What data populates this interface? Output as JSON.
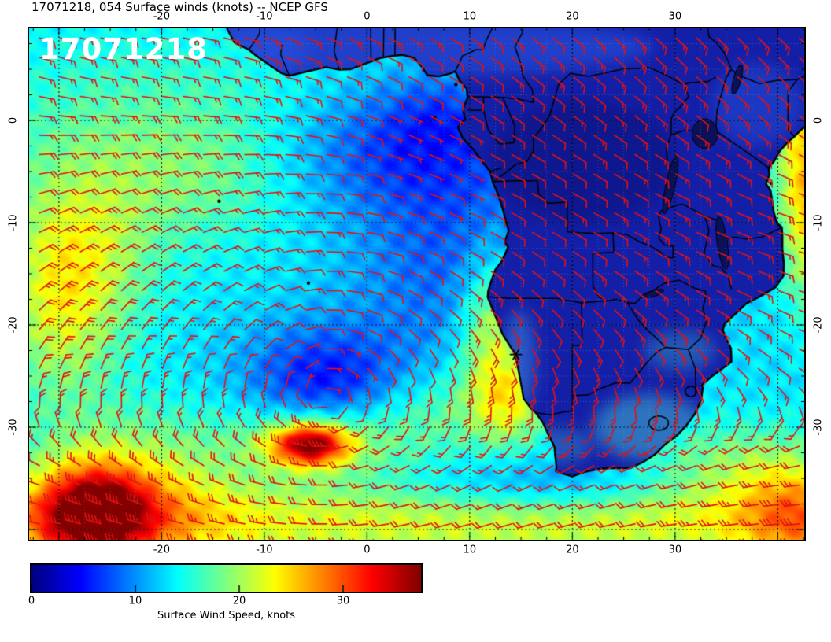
{
  "title": "17071218, 054 Surface winds (knots) -- NCEP GFS",
  "map_overlay_label": "17071218",
  "axes": {
    "top_ticks": [
      "-20",
      "-10",
      "0",
      "10",
      "20",
      "30"
    ],
    "bottom_ticks": [
      "-20",
      "-10",
      "0",
      "10",
      "20",
      "30"
    ],
    "left_ticks": [
      "0",
      "-10",
      "-20",
      "-30"
    ],
    "right_ticks": [
      "0",
      "-10",
      "-20",
      "-30"
    ],
    "lon_tick_values": [
      -20,
      -10,
      0,
      10,
      20,
      30
    ],
    "lat_tick_values": [
      0,
      -10,
      -20,
      -30
    ]
  },
  "colorbar": {
    "label": "Surface Wind Speed, knots",
    "tick_labels": [
      "0",
      "10",
      "20",
      "30"
    ],
    "tick_values": [
      0,
      10,
      20,
      30
    ],
    "palette": [
      "#000080",
      "#0000ff",
      "#00ffff",
      "#80ff80",
      "#ffff00",
      "#ff8000",
      "#ff0000",
      "#800000"
    ]
  },
  "colors": {
    "barb": "#e21313",
    "land_base": "#141fa8",
    "coastline": "#000000",
    "grid": "#000000",
    "subgrid": "#82dcff",
    "overlay_text": "#ffffff",
    "background": "#ffffff"
  },
  "chart_data": {
    "type": "heatmap",
    "title": "17071218, 054 Surface winds (knots) -- NCEP GFS",
    "x_ticks": [
      -20,
      -10,
      0,
      10,
      20,
      30
    ],
    "y_ticks": [
      0,
      -10,
      -20,
      -30
    ],
    "colorbar": {
      "label": "Surface Wind Speed, knots",
      "ticks": [
        0,
        10,
        20,
        30
      ]
    },
    "overlay": "17071218",
    "legend_position": "bottom"
  }
}
